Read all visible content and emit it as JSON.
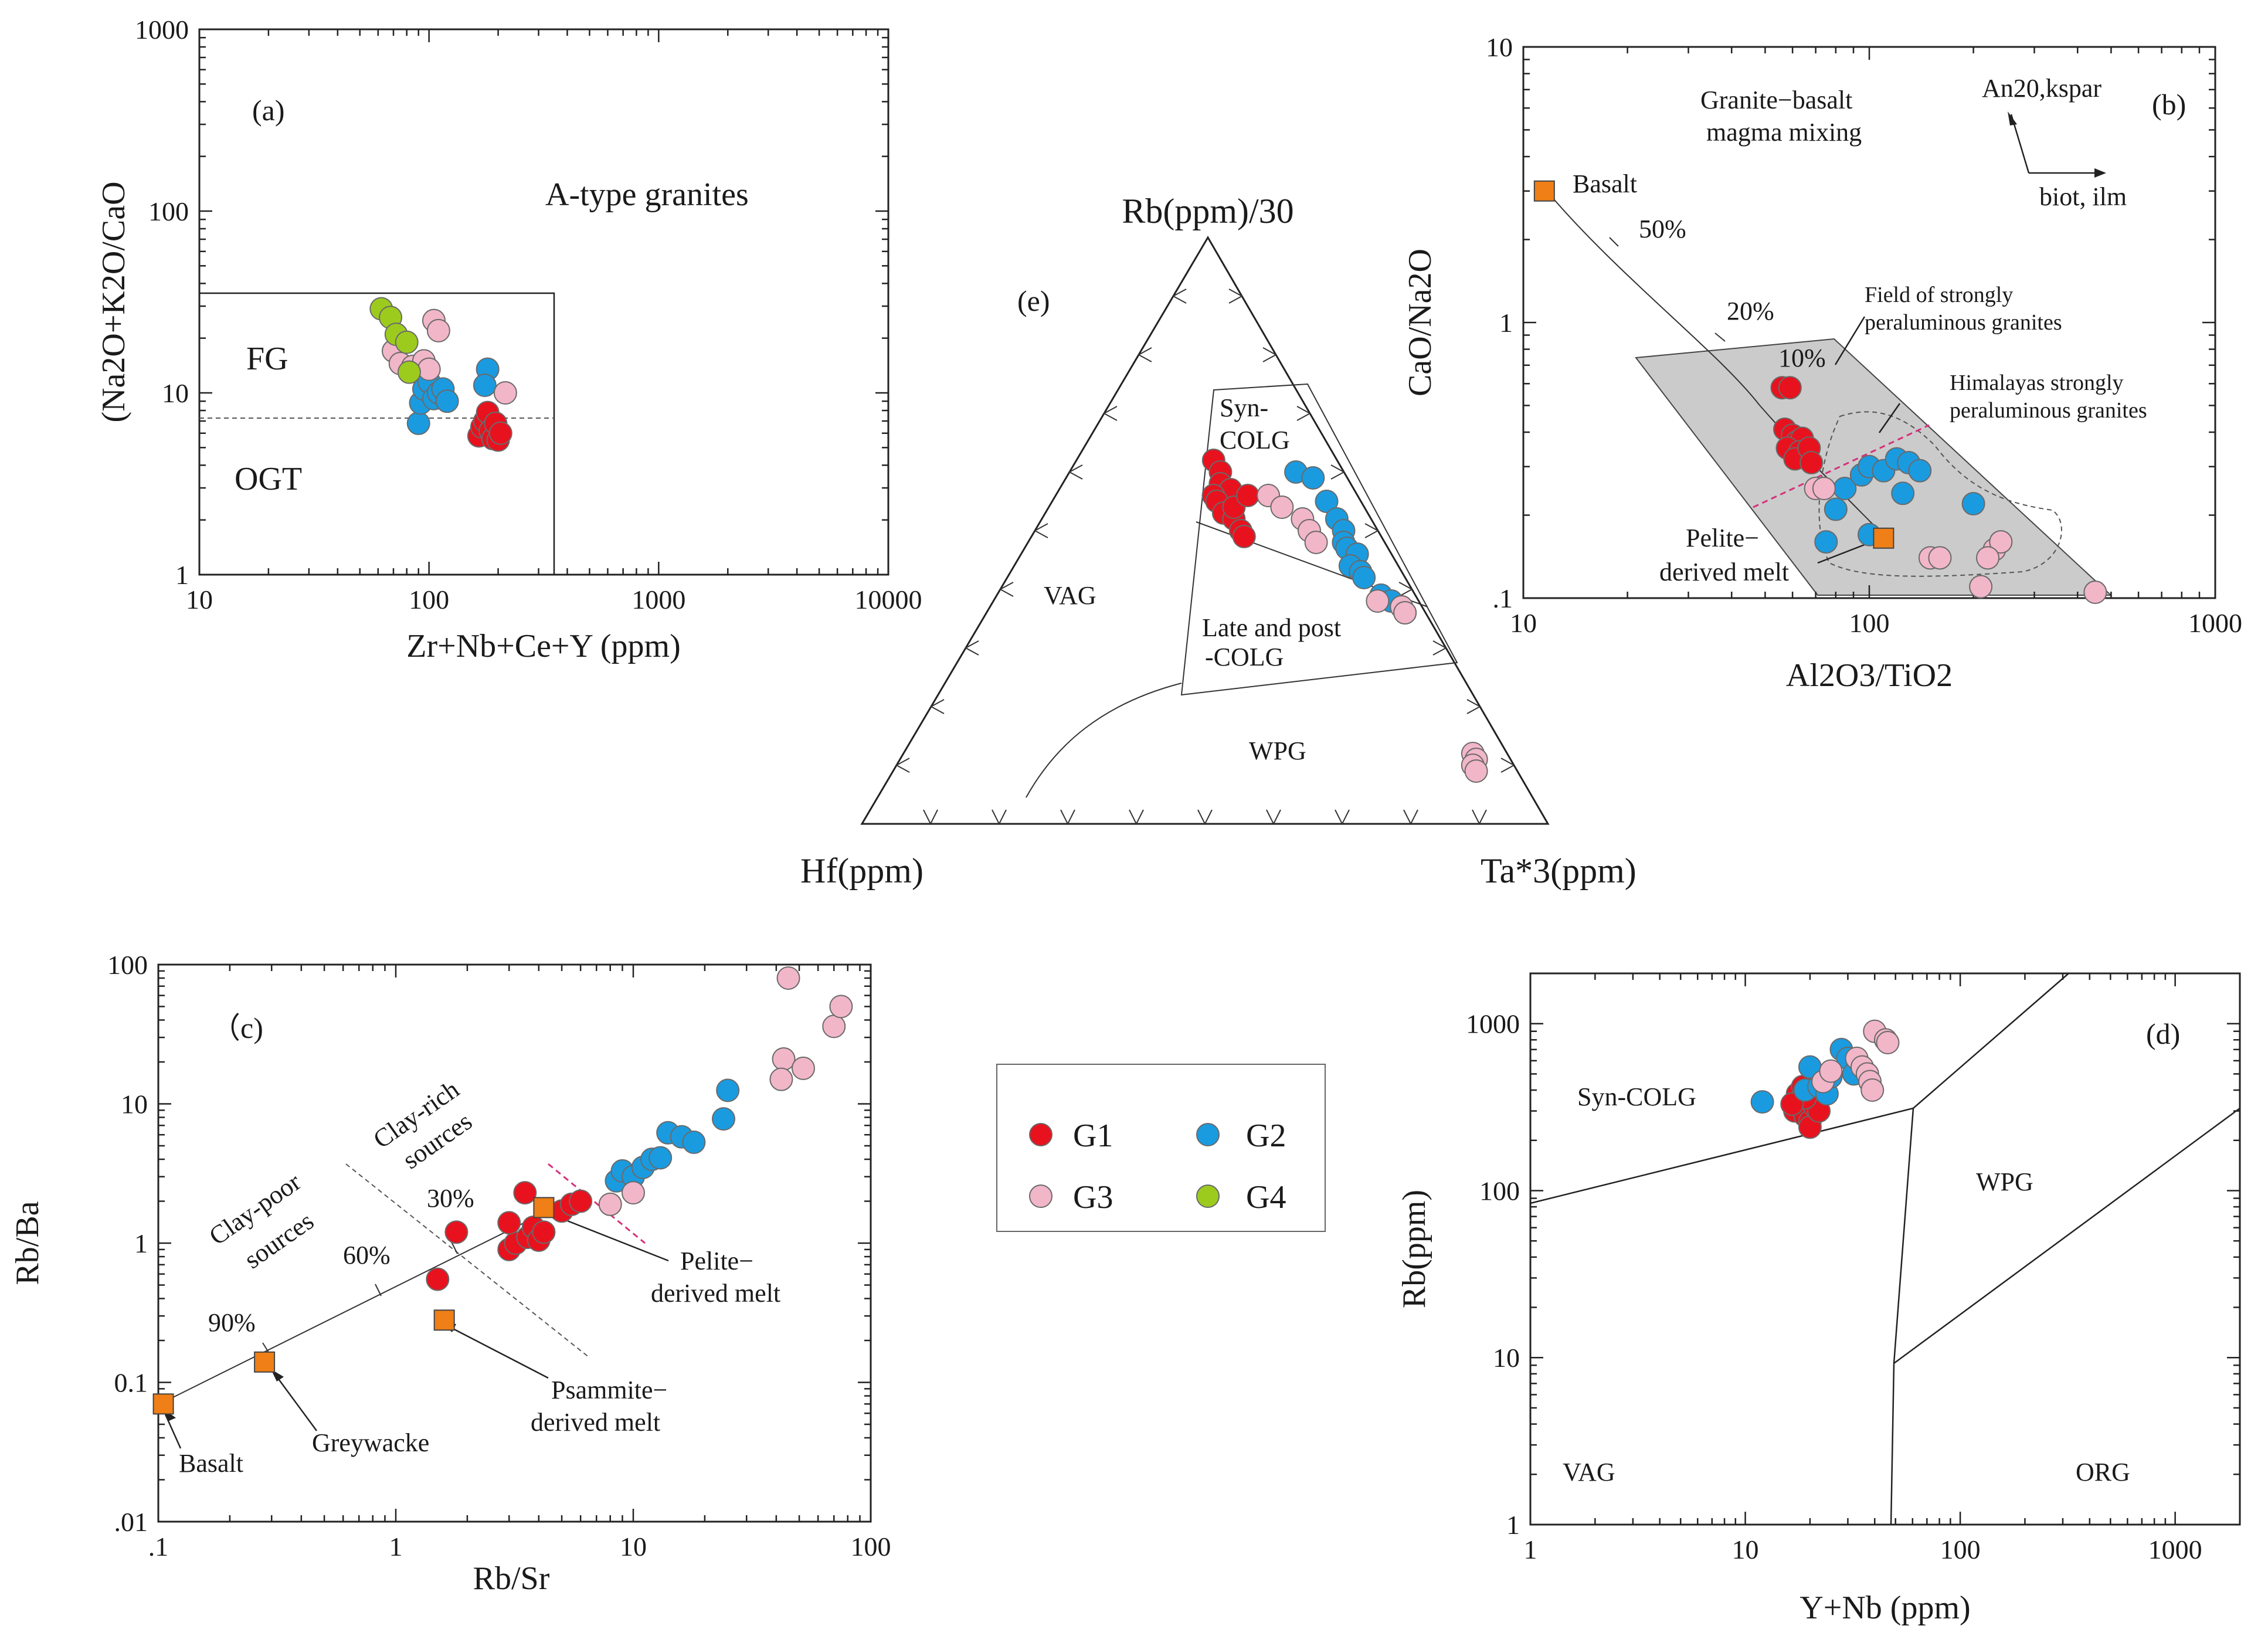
{
  "colors": {
    "G1": "#e8121e",
    "G2": "#1a9be0",
    "G3": "#f2b6c9",
    "G4": "#9ccb1e",
    "endmember": "#ef7f16",
    "field": "#cbcbcb",
    "pinkline": "#d6307a"
  },
  "legend": {
    "items": [
      "G1",
      "G2",
      "G3",
      "G4"
    ]
  },
  "chart_data": [
    {
      "id": "a",
      "type": "scatter",
      "panel_label": "(a)",
      "xlabel": "Zr+Nb+Ce+Y (ppm)",
      "ylabel": "(Na2O+K2O/CaO",
      "x_scale": "log",
      "y_scale": "log",
      "xlim": [
        10,
        10000
      ],
      "ylim": [
        1,
        1000
      ],
      "x_ticks": [
        "10",
        "100",
        "1000",
        "10000"
      ],
      "y_ticks": [
        "1",
        "10",
        "100",
        "1000"
      ],
      "field_labels": [
        "A-type granites",
        "FG",
        "OGT"
      ],
      "series": [
        {
          "name": "G1",
          "points": [
            [
              165,
              5.8
            ],
            [
              170,
              6.5
            ],
            [
              175,
              7
            ],
            [
              180,
              7.8
            ],
            [
              185,
              6.2
            ],
            [
              190,
              5.6
            ],
            [
              195,
              6.8
            ],
            [
              200,
              5.5
            ],
            [
              205,
              6.0
            ]
          ]
        },
        {
          "name": "G2",
          "points": [
            [
              90,
              6.8
            ],
            [
              92,
              8.8
            ],
            [
              95,
              10.5
            ],
            [
              100,
              11.5
            ],
            [
              105,
              9.3
            ],
            [
              110,
              10
            ],
            [
              115,
              10.5
            ],
            [
              120,
              9
            ],
            [
              180,
              13.5
            ],
            [
              175,
              11
            ]
          ]
        },
        {
          "name": "G3",
          "points": [
            [
              70,
              17
            ],
            [
              75,
              14.5
            ],
            [
              85,
              14
            ],
            [
              95,
              15
            ],
            [
              100,
              13.5
            ],
            [
              105,
              25
            ],
            [
              110,
              22
            ],
            [
              215,
              10
            ]
          ]
        },
        {
          "name": "G4",
          "points": [
            [
              62,
              29
            ],
            [
              68,
              26
            ],
            [
              72,
              21
            ],
            [
              80,
              19
            ],
            [
              82,
              13
            ]
          ]
        }
      ]
    },
    {
      "id": "b",
      "type": "scatter",
      "panel_label": "(b)",
      "xlabel": "Al2O3/TiO2",
      "ylabel": "CaO/Na2O",
      "x_scale": "log",
      "y_scale": "log",
      "xlim": [
        10,
        1000
      ],
      "ylim": [
        0.1,
        10
      ],
      "x_ticks": [
        "10",
        "100",
        "1000"
      ],
      "y_ticks": [
        ".1",
        "1",
        "10"
      ],
      "annotations": [
        "Granite−basalt",
        "magma mixing",
        "An20,kspar",
        "biot, ilm",
        "Basalt",
        "50%",
        "20%",
        "10%",
        "Field of strongly",
        "peraluminous granites",
        "Himalayas strongly",
        "peraluminous granites",
        "Pelite−",
        "derived melt"
      ],
      "series": [
        {
          "name": "G1",
          "points": [
            [
              56,
              0.58
            ],
            [
              59,
              0.58
            ],
            [
              57,
              0.41
            ],
            [
              60,
              0.39
            ],
            [
              62,
              0.37
            ],
            [
              64,
              0.38
            ],
            [
              58,
              0.35
            ],
            [
              63,
              0.34
            ],
            [
              66,
              0.33
            ],
            [
              61,
              0.32
            ],
            [
              67,
              0.35
            ],
            [
              68,
              0.31
            ]
          ]
        },
        {
          "name": "G2",
          "points": [
            [
              80,
              0.21
            ],
            [
              85,
              0.25
            ],
            [
              95,
              0.28
            ],
            [
              100,
              0.3
            ],
            [
              110,
              0.29
            ],
            [
              120,
              0.32
            ],
            [
              130,
              0.31
            ],
            [
              140,
              0.29
            ],
            [
              125,
              0.24
            ],
            [
              200,
              0.22
            ],
            [
              100,
              0.17
            ],
            [
              75,
              0.16
            ]
          ]
        },
        {
          "name": "G3",
          "points": [
            [
              70,
              0.25
            ],
            [
              74,
              0.25
            ],
            [
              150,
              0.14
            ],
            [
              160,
              0.14
            ],
            [
              230,
              0.15
            ],
            [
              240,
              0.16
            ],
            [
              220,
              0.14
            ],
            [
              210,
              0.11
            ],
            [
              450,
              0.105
            ]
          ]
        },
        {
          "name": "Basalt",
          "points": [
            [
              11.5,
              3.0
            ]
          ]
        },
        {
          "name": "Pelite-derived melt",
          "points": [
            [
              110,
              0.165
            ]
          ]
        }
      ]
    },
    {
      "id": "c",
      "type": "scatter",
      "panel_label": "（c)",
      "xlabel": "Rb/Sr",
      "ylabel": "Rb/Ba",
      "x_scale": "log",
      "y_scale": "log",
      "xlim": [
        0.1,
        100
      ],
      "ylim": [
        0.01,
        100
      ],
      "x_ticks": [
        ".1",
        "1",
        "10",
        "100"
      ],
      "y_ticks": [
        ".01",
        "0.1",
        "1",
        "10",
        "100"
      ],
      "annotations": [
        "Clay-poor",
        "sources",
        "Clay-rich",
        "sources",
        "30%",
        "60%",
        "90%",
        "Pelite−",
        "derived melt",
        "Psammite−",
        "derived melt",
        "Greywacke",
        "Basalt"
      ],
      "series": [
        {
          "name": "G1",
          "points": [
            [
              1.5,
              0.55
            ],
            [
              1.8,
              1.2
            ],
            [
              3.0,
              0.9
            ],
            [
              3.2,
              1.0
            ],
            [
              3.0,
              1.4
            ],
            [
              3.5,
              2.3
            ],
            [
              3.6,
              1.1
            ],
            [
              3.8,
              1.3
            ],
            [
              4.0,
              1.05
            ],
            [
              4.2,
              1.2
            ],
            [
              5.0,
              1.7
            ],
            [
              5.5,
              1.9
            ],
            [
              6.0,
              2.0
            ]
          ]
        },
        {
          "name": "G2",
          "points": [
            [
              8.5,
              2.8
            ],
            [
              9.0,
              3.3
            ],
            [
              10,
              3.0
            ],
            [
              11,
              3.5
            ],
            [
              12,
              4.0
            ],
            [
              13,
              4.1
            ],
            [
              14,
              6.2
            ],
            [
              16,
              5.8
            ],
            [
              18,
              5.3
            ],
            [
              24,
              7.8
            ],
            [
              25,
              12.5
            ]
          ]
        },
        {
          "name": "G3",
          "points": [
            [
              8,
              1.9
            ],
            [
              10,
              2.3
            ],
            [
              45,
              80
            ],
            [
              43,
              21
            ],
            [
              42,
              15
            ],
            [
              52,
              18
            ],
            [
              70,
              36
            ],
            [
              75,
              50
            ]
          ]
        },
        {
          "name": "Basalt",
          "points": [
            [
              0.105,
              0.07
            ]
          ]
        },
        {
          "name": "Greywacke",
          "points": [
            [
              0.28,
              0.14
            ]
          ]
        },
        {
          "name": "Psammite-derived melt",
          "points": [
            [
              1.6,
              0.28
            ]
          ]
        },
        {
          "name": "Pelite-derived melt",
          "points": [
            [
              4.2,
              1.8
            ]
          ]
        }
      ]
    },
    {
      "id": "d",
      "type": "scatter",
      "panel_label": "(d)",
      "xlabel": "Y+Nb (ppm)",
      "ylabel": "Rb(ppm)",
      "x_scale": "log",
      "y_scale": "log",
      "xlim": [
        1,
        2000
      ],
      "ylim": [
        1,
        2000
      ],
      "x_ticks": [
        "1",
        "10",
        "100",
        "1000"
      ],
      "y_ticks": [
        "1",
        "10",
        "100",
        "1000"
      ],
      "field_labels": [
        "Syn-COLG",
        "WPG",
        "VAG",
        "ORG"
      ],
      "series": [
        {
          "name": "G1",
          "points": [
            [
              17,
              300
            ],
            [
              18,
              350
            ],
            [
              19,
              280
            ],
            [
              20,
              260
            ],
            [
              21,
              320
            ],
            [
              17.5,
              380
            ],
            [
              18.5,
              420
            ],
            [
              20,
              240
            ],
            [
              22,
              300
            ],
            [
              19,
              360
            ],
            [
              16.5,
              330
            ]
          ]
        },
        {
          "name": "G2",
          "points": [
            [
              12,
              340
            ],
            [
              19,
              400
            ],
            [
              20,
              550
            ],
            [
              22,
              420
            ],
            [
              24,
              380
            ],
            [
              25,
              480
            ],
            [
              28,
              700
            ],
            [
              30,
              620
            ],
            [
              32,
              500
            ]
          ]
        },
        {
          "name": "G3",
          "points": [
            [
              23,
              450
            ],
            [
              25,
              520
            ],
            [
              33,
              620
            ],
            [
              35,
              550
            ],
            [
              37,
              500
            ],
            [
              38,
              450
            ],
            [
              39,
              400
            ],
            [
              40,
              900
            ],
            [
              45,
              800
            ],
            [
              46,
              770
            ]
          ]
        }
      ]
    },
    {
      "id": "e",
      "type": "scatter",
      "panel_label": "(e)",
      "apex_labels": [
        "Rb(ppm)/30",
        "Hf(ppm)",
        "Ta*3(ppm)"
      ],
      "field_labels": [
        "Syn-",
        "COLG",
        "Late and post",
        "-COLG",
        "VAG",
        "WPG"
      ],
      "series": [
        {
          "name": "G1",
          "points": [
            [
              0.62,
              0.2
            ],
            [
              0.6,
              0.22
            ],
            [
              0.58,
              0.23
            ],
            [
              0.57,
              0.25
            ],
            [
              0.56,
              0.23
            ],
            [
              0.55,
              0.24
            ],
            [
              0.53,
              0.26
            ],
            [
              0.52,
              0.28
            ],
            [
              0.5,
              0.3
            ],
            [
              0.49,
              0.31
            ],
            [
              0.54,
              0.27
            ],
            [
              0.56,
              0.28
            ]
          ]
        },
        {
          "name": "G2",
          "points": [
            [
              0.6,
              0.33
            ],
            [
              0.59,
              0.36
            ],
            [
              0.55,
              0.4
            ],
            [
              0.52,
              0.43
            ],
            [
              0.5,
              0.45
            ],
            [
              0.48,
              0.46
            ],
            [
              0.47,
              0.47
            ],
            [
              0.46,
              0.49
            ],
            [
              0.44,
              0.49
            ],
            [
              0.43,
              0.51
            ],
            [
              0.42,
              0.52
            ],
            [
              0.39,
              0.56
            ],
            [
              0.38,
              0.58
            ],
            [
              0.37,
              0.6
            ],
            [
              0.36,
              0.61
            ]
          ]
        },
        {
          "name": "G3",
          "points": [
            [
              0.56,
              0.31
            ],
            [
              0.54,
              0.34
            ],
            [
              0.52,
              0.38
            ],
            [
              0.5,
              0.4
            ],
            [
              0.48,
              0.42
            ],
            [
              0.38,
              0.56
            ],
            [
              0.37,
              0.6
            ],
            [
              0.36,
              0.61
            ],
            [
              0.12,
              0.83
            ],
            [
              0.11,
              0.84
            ],
            [
              0.1,
              0.84
            ],
            [
              0.09,
              0.85
            ]
          ]
        }
      ]
    }
  ]
}
